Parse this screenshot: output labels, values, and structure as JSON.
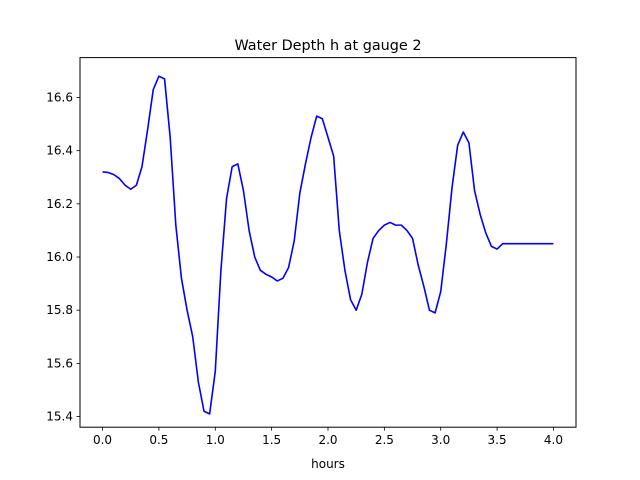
{
  "chart_data": {
    "type": "line",
    "title": "Water Depth h at gauge 2",
    "xlabel": "hours",
    "ylabel": "",
    "xlim": [
      -0.2,
      4.2
    ],
    "ylim": [
      15.36,
      16.75
    ],
    "xticks": [
      "0.0",
      "0.5",
      "1.0",
      "1.5",
      "2.0",
      "2.5",
      "3.0",
      "3.5",
      "4.0"
    ],
    "yticks": [
      "15.4",
      "15.6",
      "15.8",
      "16.0",
      "16.2",
      "16.4",
      "16.6"
    ],
    "grid": false,
    "line_color": "#0000ff",
    "series": [
      {
        "x": [
          0.0,
          0.05,
          0.1,
          0.15,
          0.2,
          0.25,
          0.3,
          0.35,
          0.4,
          0.45,
          0.5,
          0.55,
          0.6,
          0.65,
          0.7,
          0.75,
          0.8,
          0.85,
          0.9,
          0.95,
          1.0,
          1.05,
          1.1,
          1.15,
          1.2,
          1.25,
          1.3,
          1.35,
          1.4,
          1.45,
          1.5,
          1.55,
          1.6,
          1.65,
          1.7,
          1.75,
          1.8,
          1.85,
          1.9,
          1.95,
          2.0,
          2.05,
          2.1,
          2.15,
          2.2,
          2.25,
          2.3,
          2.35,
          2.4,
          2.45,
          2.5,
          2.55,
          2.6,
          2.65,
          2.7,
          2.75,
          2.8,
          2.85,
          2.9,
          2.95,
          3.0,
          3.05,
          3.1,
          3.15,
          3.2,
          3.25,
          3.3,
          3.35,
          3.4,
          3.45,
          3.5,
          3.55,
          3.6,
          3.65,
          3.7,
          3.75,
          3.8,
          3.85,
          3.9,
          3.95,
          4.0
        ],
        "values": [
          16.32,
          16.318,
          16.31,
          16.295,
          16.27,
          16.255,
          16.27,
          16.34,
          16.48,
          16.63,
          16.68,
          16.67,
          16.45,
          16.12,
          15.92,
          15.8,
          15.7,
          15.53,
          15.42,
          15.41,
          15.57,
          15.95,
          16.22,
          16.34,
          16.35,
          16.25,
          16.1,
          16.0,
          15.95,
          15.935,
          15.925,
          15.91,
          15.92,
          15.96,
          16.06,
          16.24,
          16.35,
          16.45,
          16.53,
          16.52,
          16.45,
          16.38,
          16.1,
          15.95,
          15.84,
          15.8,
          15.86,
          15.98,
          16.07,
          16.1,
          16.12,
          16.13,
          16.12,
          16.12,
          16.1,
          16.07,
          15.97,
          15.89,
          15.8,
          15.79,
          15.87,
          16.05,
          16.26,
          16.42,
          16.47,
          16.43,
          16.25,
          16.16,
          16.09,
          16.04,
          16.03,
          16.05,
          16.05,
          16.05,
          16.05,
          16.05,
          16.05,
          16.05,
          16.05,
          16.05,
          16.05
        ]
      }
    ]
  }
}
